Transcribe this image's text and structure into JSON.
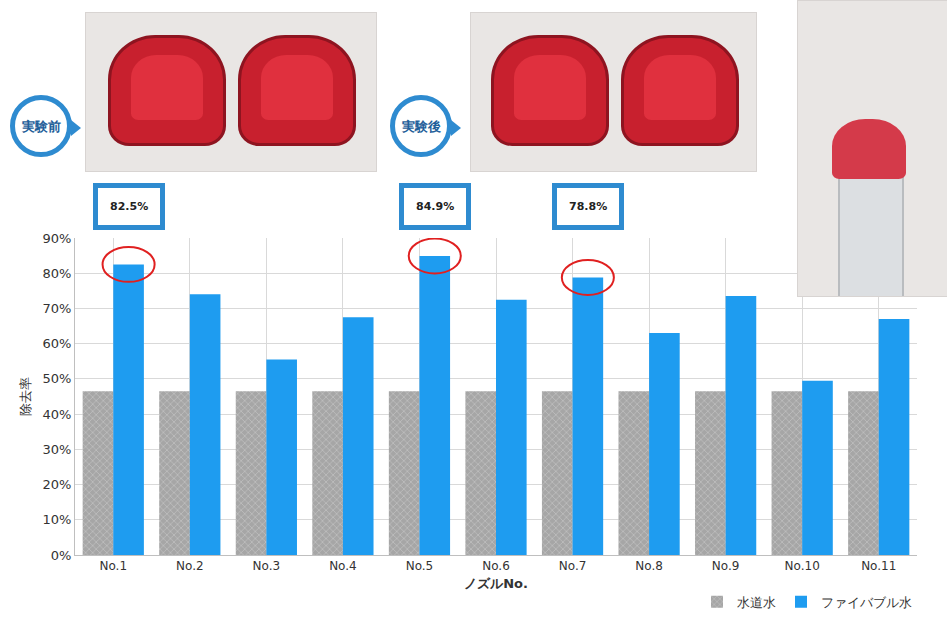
{
  "chart_data": {
    "type": "bar",
    "categories": [
      "No.1",
      "No.2",
      "No.3",
      "No.4",
      "No.5",
      "No.6",
      "No.7",
      "No.8",
      "No.9",
      "No.10",
      "No.11"
    ],
    "series": [
      {
        "name": "水道水",
        "color": "#a6a6a6",
        "values": [
          46.5,
          46.5,
          46.5,
          46.5,
          46.5,
          46.5,
          46.5,
          46.5,
          46.5,
          46.5,
          46.5
        ]
      },
      {
        "name": "ファイバブル水",
        "color": "#1e9cf0",
        "values": [
          82.5,
          74,
          55.5,
          67.5,
          84.9,
          72.5,
          78.8,
          63,
          73.5,
          49.5,
          67
        ]
      }
    ],
    "x_label": "ノズルNo.",
    "y_label": "除去率",
    "ylim": [
      0,
      90
    ],
    "yticks": [
      {
        "value": 0,
        "label": "0%"
      },
      {
        "value": 10,
        "label": "10%"
      },
      {
        "value": 20,
        "label": "20%"
      },
      {
        "value": 30,
        "label": "30%"
      },
      {
        "value": 40,
        "label": "40%"
      },
      {
        "value": 50,
        "label": "50%"
      },
      {
        "value": 60,
        "label": "60%"
      },
      {
        "value": 70,
        "label": "70%"
      },
      {
        "value": 80,
        "label": "80%"
      },
      {
        "value": 90,
        "label": "90%"
      }
    ],
    "annotations": [
      {
        "category": "No.1",
        "text": "82.5%"
      },
      {
        "category": "No.5",
        "text": "84.9%"
      },
      {
        "category": "No.7",
        "text": "78.8%"
      }
    ],
    "photo_labels": [
      "実験前",
      "実験後"
    ],
    "grid": true,
    "legend": "bottom right"
  }
}
